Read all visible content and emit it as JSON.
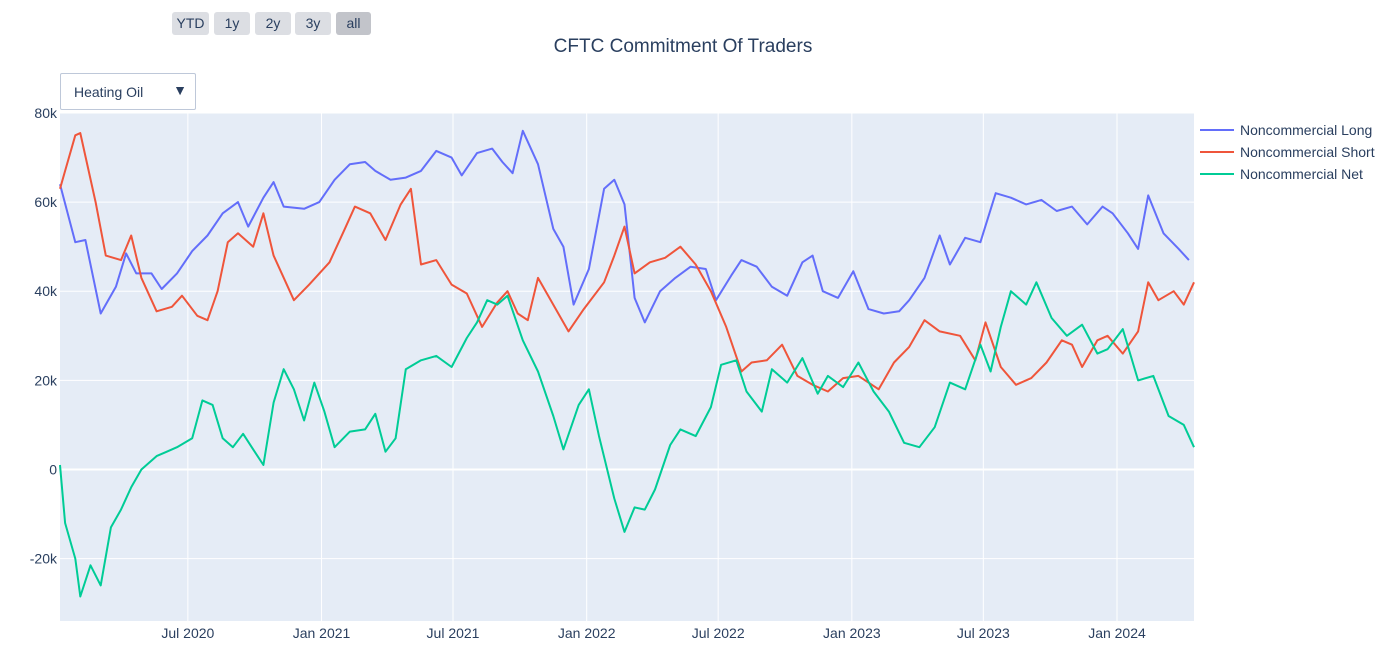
{
  "range_selector": {
    "buttons": [
      {
        "label": "YTD",
        "active": false
      },
      {
        "label": "1y",
        "active": false
      },
      {
        "label": "2y",
        "active": false
      },
      {
        "label": "3y",
        "active": false
      },
      {
        "label": "all",
        "active": true
      }
    ]
  },
  "dropdown": {
    "selected": "Heating Oil"
  },
  "colors": {
    "plot_bg": "#e5ecf6",
    "grid": "#ffffff",
    "text": "#2a3f5f"
  },
  "chart_data": {
    "type": "line",
    "title": "CFTC Commitment Of Traders",
    "xlabel": "",
    "ylabel": "",
    "ylim": [
      -34000,
      80000
    ],
    "x_ticks": [
      "2020-07-01",
      "2021-01-01",
      "2021-07-01",
      "2022-01-01",
      "2022-07-01",
      "2023-01-01",
      "2023-07-01",
      "2024-01-01"
    ],
    "x_tick_labels": [
      "Jul 2020",
      "Jan 2021",
      "Jul 2021",
      "Jan 2022",
      "Jul 2022",
      "Jan 2023",
      "Jul 2023",
      "Jan 2024"
    ],
    "y_ticks": [
      -20000,
      0,
      20000,
      40000,
      60000,
      80000
    ],
    "y_tick_labels": [
      "-20k",
      "0",
      "20k",
      "40k",
      "60k",
      "80k"
    ],
    "legend_position": "top-right",
    "series": [
      {
        "name": "Noncommercial Long",
        "color": "#636efa",
        "points": [
          [
            "2020-01-07",
            64000
          ],
          [
            "2020-01-28",
            51000
          ],
          [
            "2020-02-11",
            51500
          ],
          [
            "2020-03-03",
            35000
          ],
          [
            "2020-03-24",
            41000
          ],
          [
            "2020-04-07",
            48500
          ],
          [
            "2020-04-21",
            44000
          ],
          [
            "2020-05-12",
            44000
          ],
          [
            "2020-05-26",
            40500
          ],
          [
            "2020-06-16",
            44000
          ],
          [
            "2020-07-07",
            49000
          ],
          [
            "2020-07-28",
            52500
          ],
          [
            "2020-08-18",
            57500
          ],
          [
            "2020-09-08",
            60000
          ],
          [
            "2020-09-22",
            54500
          ],
          [
            "2020-10-13",
            61000
          ],
          [
            "2020-10-27",
            64500
          ],
          [
            "2020-11-10",
            59000
          ],
          [
            "2020-12-08",
            58500
          ],
          [
            "2020-12-29",
            60000
          ],
          [
            "2021-01-19",
            65000
          ],
          [
            "2021-02-09",
            68500
          ],
          [
            "2021-03-02",
            69000
          ],
          [
            "2021-03-16",
            67000
          ],
          [
            "2021-04-06",
            65000
          ],
          [
            "2021-04-27",
            65500
          ],
          [
            "2021-05-18",
            67000
          ],
          [
            "2021-06-08",
            71500
          ],
          [
            "2021-06-29",
            70000
          ],
          [
            "2021-07-13",
            66000
          ],
          [
            "2021-08-03",
            71000
          ],
          [
            "2021-08-24",
            72000
          ],
          [
            "2021-09-07",
            69000
          ],
          [
            "2021-09-21",
            66500
          ],
          [
            "2021-10-05",
            76000
          ],
          [
            "2021-10-26",
            68500
          ],
          [
            "2021-11-16",
            54000
          ],
          [
            "2021-11-30",
            50000
          ],
          [
            "2021-12-14",
            37000
          ],
          [
            "2022-01-04",
            45000
          ],
          [
            "2022-01-25",
            63000
          ],
          [
            "2022-02-08",
            65000
          ],
          [
            "2022-02-22",
            59500
          ],
          [
            "2022-03-08",
            38500
          ],
          [
            "2022-03-22",
            33000
          ],
          [
            "2022-04-12",
            40000
          ],
          [
            "2022-05-03",
            43000
          ],
          [
            "2022-05-24",
            45500
          ],
          [
            "2022-06-14",
            45000
          ],
          [
            "2022-06-28",
            38000
          ],
          [
            "2022-07-19",
            43500
          ],
          [
            "2022-08-02",
            47000
          ],
          [
            "2022-08-23",
            45500
          ],
          [
            "2022-09-13",
            41000
          ],
          [
            "2022-10-04",
            39000
          ],
          [
            "2022-10-25",
            46500
          ],
          [
            "2022-11-08",
            48000
          ],
          [
            "2022-11-22",
            40000
          ],
          [
            "2022-12-13",
            38500
          ],
          [
            "2023-01-03",
            44500
          ],
          [
            "2023-01-24",
            36000
          ],
          [
            "2023-02-14",
            35000
          ],
          [
            "2023-03-07",
            35500
          ],
          [
            "2023-03-21",
            38000
          ],
          [
            "2023-04-11",
            43000
          ],
          [
            "2023-05-02",
            52500
          ],
          [
            "2023-05-16",
            46000
          ],
          [
            "2023-06-06",
            52000
          ],
          [
            "2023-06-27",
            51000
          ],
          [
            "2023-07-18",
            62000
          ],
          [
            "2023-08-08",
            61000
          ],
          [
            "2023-08-29",
            59500
          ],
          [
            "2023-09-19",
            60500
          ],
          [
            "2023-10-10",
            58000
          ],
          [
            "2023-10-31",
            59000
          ],
          [
            "2023-11-21",
            55000
          ],
          [
            "2023-12-12",
            59000
          ],
          [
            "2023-12-26",
            57500
          ],
          [
            "2024-01-16",
            53000
          ],
          [
            "2024-01-30",
            49500
          ],
          [
            "2024-02-13",
            61500
          ],
          [
            "2024-03-05",
            53000
          ],
          [
            "2024-03-26",
            49500
          ],
          [
            "2024-04-09",
            47000
          ]
        ]
      },
      {
        "name": "Noncommercial Short",
        "color": "#ef553b",
        "points": [
          [
            "2020-01-07",
            63000
          ],
          [
            "2020-01-14",
            67000
          ],
          [
            "2020-01-28",
            75000
          ],
          [
            "2020-02-04",
            75500
          ],
          [
            "2020-02-25",
            60000
          ],
          [
            "2020-03-10",
            48000
          ],
          [
            "2020-03-31",
            47000
          ],
          [
            "2020-04-14",
            52500
          ],
          [
            "2020-04-28",
            43000
          ],
          [
            "2020-05-19",
            35500
          ],
          [
            "2020-06-09",
            36500
          ],
          [
            "2020-06-23",
            39000
          ],
          [
            "2020-07-14",
            34500
          ],
          [
            "2020-07-28",
            33500
          ],
          [
            "2020-08-11",
            40000
          ],
          [
            "2020-08-25",
            51000
          ],
          [
            "2020-09-08",
            53000
          ],
          [
            "2020-09-29",
            50000
          ],
          [
            "2020-10-13",
            57500
          ],
          [
            "2020-10-27",
            48000
          ],
          [
            "2020-11-24",
            38000
          ],
          [
            "2020-12-15",
            41500
          ],
          [
            "2021-01-12",
            46500
          ],
          [
            "2021-02-02",
            54000
          ],
          [
            "2021-02-16",
            59000
          ],
          [
            "2021-03-09",
            57500
          ],
          [
            "2021-03-30",
            51500
          ],
          [
            "2021-04-20",
            59500
          ],
          [
            "2021-05-04",
            63000
          ],
          [
            "2021-05-18",
            46000
          ],
          [
            "2021-06-08",
            47000
          ],
          [
            "2021-06-29",
            41500
          ],
          [
            "2021-07-20",
            39500
          ],
          [
            "2021-08-10",
            32000
          ],
          [
            "2021-08-31",
            37500
          ],
          [
            "2021-09-14",
            40000
          ],
          [
            "2021-09-28",
            35000
          ],
          [
            "2021-10-12",
            33500
          ],
          [
            "2021-10-26",
            43000
          ],
          [
            "2021-11-09",
            39000
          ],
          [
            "2021-11-23",
            35000
          ],
          [
            "2021-12-07",
            31000
          ],
          [
            "2021-12-28",
            36000
          ],
          [
            "2022-01-25",
            42000
          ],
          [
            "2022-02-08",
            48000
          ],
          [
            "2022-02-22",
            54500
          ],
          [
            "2022-03-08",
            44000
          ],
          [
            "2022-03-29",
            46500
          ],
          [
            "2022-04-19",
            47500
          ],
          [
            "2022-05-10",
            50000
          ],
          [
            "2022-05-31",
            46000
          ],
          [
            "2022-06-21",
            40000
          ],
          [
            "2022-07-12",
            32000
          ],
          [
            "2022-08-02",
            22000
          ],
          [
            "2022-08-16",
            24000
          ],
          [
            "2022-09-06",
            24500
          ],
          [
            "2022-09-27",
            28000
          ],
          [
            "2022-10-18",
            21000
          ],
          [
            "2022-11-08",
            19000
          ],
          [
            "2022-11-29",
            17500
          ],
          [
            "2022-12-20",
            20500
          ],
          [
            "2023-01-10",
            21000
          ],
          [
            "2023-02-07",
            18000
          ],
          [
            "2023-02-28",
            24000
          ],
          [
            "2023-03-21",
            27500
          ],
          [
            "2023-04-11",
            33500
          ],
          [
            "2023-05-02",
            31000
          ],
          [
            "2023-05-30",
            30000
          ],
          [
            "2023-06-20",
            24500
          ],
          [
            "2023-07-04",
            33000
          ],
          [
            "2023-07-25",
            23000
          ],
          [
            "2023-08-15",
            19000
          ],
          [
            "2023-09-05",
            20500
          ],
          [
            "2023-09-26",
            24000
          ],
          [
            "2023-10-17",
            29000
          ],
          [
            "2023-10-31",
            28000
          ],
          [
            "2023-11-14",
            23000
          ],
          [
            "2023-12-05",
            29000
          ],
          [
            "2023-12-19",
            30000
          ],
          [
            "2024-01-09",
            26000
          ],
          [
            "2024-01-30",
            31000
          ],
          [
            "2024-02-13",
            42000
          ],
          [
            "2024-02-27",
            38000
          ],
          [
            "2024-03-19",
            40000
          ],
          [
            "2024-04-02",
            37000
          ],
          [
            "2024-04-16",
            42000
          ]
        ]
      },
      {
        "name": "Noncommercial Net",
        "color": "#00cc96",
        "points": [
          [
            "2020-01-07",
            1000
          ],
          [
            "2020-01-14",
            -12000
          ],
          [
            "2020-01-28",
            -20000
          ],
          [
            "2020-02-04",
            -28500
          ],
          [
            "2020-02-18",
            -21500
          ],
          [
            "2020-03-03",
            -26000
          ],
          [
            "2020-03-17",
            -13000
          ],
          [
            "2020-03-31",
            -9000
          ],
          [
            "2020-04-14",
            -4000
          ],
          [
            "2020-04-28",
            0
          ],
          [
            "2020-05-19",
            3000
          ],
          [
            "2020-06-02",
            4000
          ],
          [
            "2020-06-16",
            5000
          ],
          [
            "2020-07-07",
            7000
          ],
          [
            "2020-07-21",
            15500
          ],
          [
            "2020-08-04",
            14500
          ],
          [
            "2020-08-18",
            7000
          ],
          [
            "2020-09-01",
            5000
          ],
          [
            "2020-09-15",
            8000
          ],
          [
            "2020-09-29",
            4500
          ],
          [
            "2020-10-13",
            1000
          ],
          [
            "2020-10-27",
            15000
          ],
          [
            "2020-11-10",
            22500
          ],
          [
            "2020-11-24",
            18000
          ],
          [
            "2020-12-08",
            11000
          ],
          [
            "2020-12-22",
            19500
          ],
          [
            "2021-01-05",
            13000
          ],
          [
            "2021-01-19",
            5000
          ],
          [
            "2021-02-09",
            8500
          ],
          [
            "2021-03-02",
            9000
          ],
          [
            "2021-03-16",
            12500
          ],
          [
            "2021-03-30",
            4000
          ],
          [
            "2021-04-13",
            7000
          ],
          [
            "2021-04-27",
            22500
          ],
          [
            "2021-05-18",
            24500
          ],
          [
            "2021-06-08",
            25500
          ],
          [
            "2021-06-29",
            23000
          ],
          [
            "2021-07-20",
            29500
          ],
          [
            "2021-08-03",
            33000
          ],
          [
            "2021-08-17",
            38000
          ],
          [
            "2021-08-31",
            37000
          ],
          [
            "2021-09-14",
            39000
          ],
          [
            "2021-10-05",
            29000
          ],
          [
            "2021-10-26",
            22000
          ],
          [
            "2021-11-16",
            12000
          ],
          [
            "2021-11-30",
            4500
          ],
          [
            "2021-12-21",
            14500
          ],
          [
            "2022-01-04",
            18000
          ],
          [
            "2022-01-18",
            7500
          ],
          [
            "2022-02-08",
            -6500
          ],
          [
            "2022-02-22",
            -14000
          ],
          [
            "2022-03-08",
            -8500
          ],
          [
            "2022-03-22",
            -9000
          ],
          [
            "2022-04-05",
            -4500
          ],
          [
            "2022-04-26",
            5500
          ],
          [
            "2022-05-10",
            9000
          ],
          [
            "2022-05-31",
            7500
          ],
          [
            "2022-06-21",
            14000
          ],
          [
            "2022-07-05",
            23500
          ],
          [
            "2022-07-26",
            24500
          ],
          [
            "2022-08-09",
            17500
          ],
          [
            "2022-08-30",
            13000
          ],
          [
            "2022-09-13",
            22500
          ],
          [
            "2022-10-04",
            19500
          ],
          [
            "2022-10-25",
            25000
          ],
          [
            "2022-11-15",
            17000
          ],
          [
            "2022-11-29",
            21000
          ],
          [
            "2022-12-20",
            18500
          ],
          [
            "2023-01-10",
            24000
          ],
          [
            "2023-01-31",
            17500
          ],
          [
            "2023-02-21",
            13000
          ],
          [
            "2023-03-14",
            6000
          ],
          [
            "2023-04-04",
            5000
          ],
          [
            "2023-04-25",
            9500
          ],
          [
            "2023-05-16",
            19500
          ],
          [
            "2023-06-06",
            18000
          ],
          [
            "2023-06-27",
            28000
          ],
          [
            "2023-07-11",
            22000
          ],
          [
            "2023-07-25",
            32000
          ],
          [
            "2023-08-08",
            40000
          ],
          [
            "2023-08-29",
            37000
          ],
          [
            "2023-09-12",
            42000
          ],
          [
            "2023-10-03",
            34000
          ],
          [
            "2023-10-24",
            30000
          ],
          [
            "2023-11-14",
            32500
          ],
          [
            "2023-12-05",
            26000
          ],
          [
            "2023-12-19",
            27000
          ],
          [
            "2024-01-09",
            31500
          ],
          [
            "2024-01-30",
            20000
          ],
          [
            "2024-02-20",
            21000
          ],
          [
            "2024-03-12",
            12000
          ],
          [
            "2024-04-02",
            10000
          ],
          [
            "2024-04-16",
            5000
          ]
        ]
      }
    ]
  }
}
